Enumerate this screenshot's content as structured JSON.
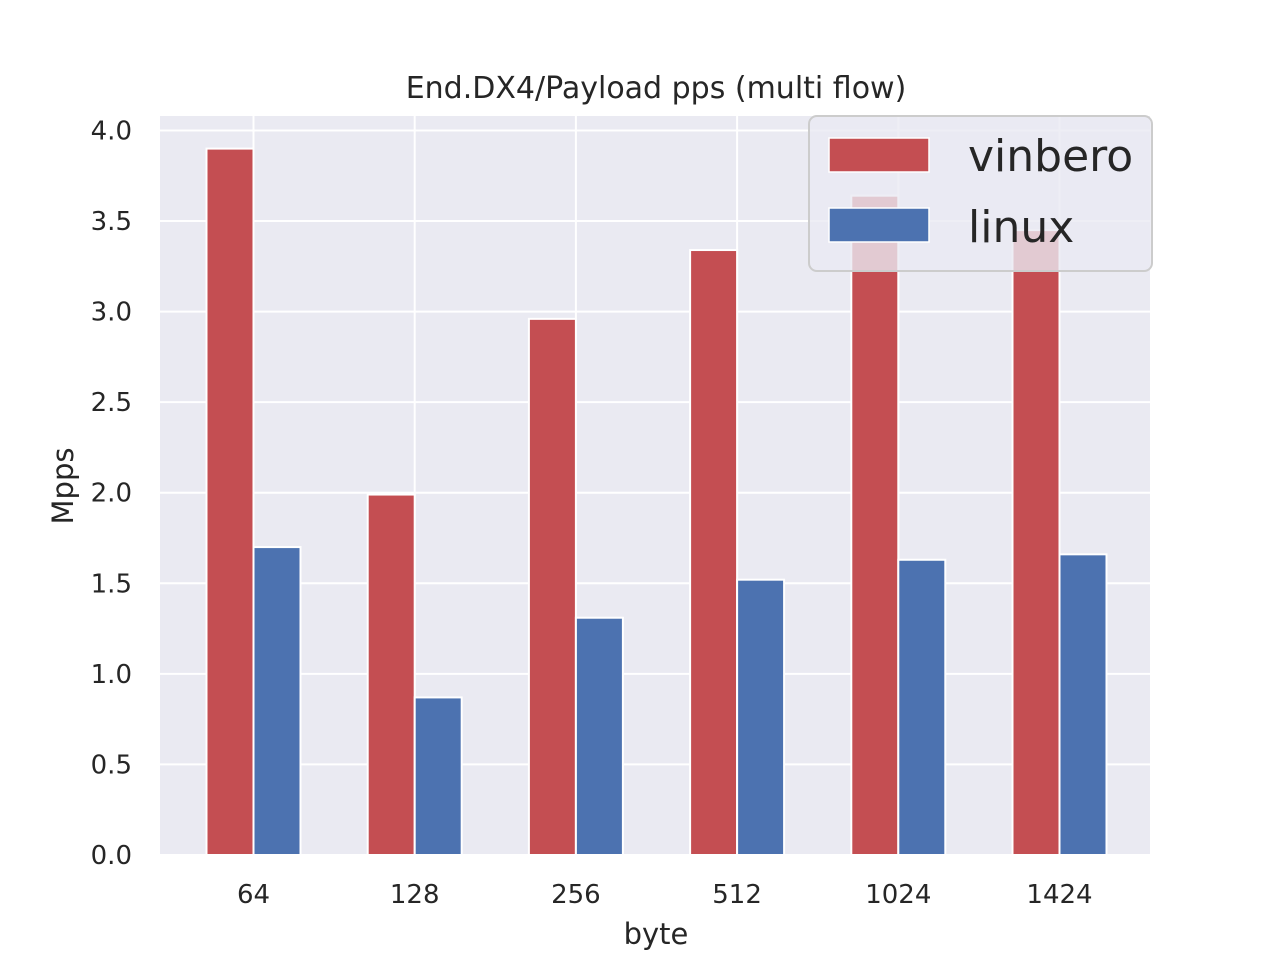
{
  "chart_data": {
    "type": "bar",
    "title": "End.DX4/Payload pps (multi flow)",
    "xlabel": "byte",
    "ylabel": "Mpps",
    "categories": [
      "64",
      "128",
      "256",
      "512",
      "1024",
      "1424"
    ],
    "series": [
      {
        "name": "vinbero",
        "color": "#c44e52",
        "values": [
          3.9,
          1.99,
          2.96,
          3.34,
          3.64,
          3.45
        ]
      },
      {
        "name": "linux",
        "color": "#4c72b0",
        "values": [
          1.7,
          0.87,
          1.31,
          1.52,
          1.63,
          1.66
        ]
      }
    ],
    "ylim": [
      0,
      4.08
    ],
    "yticks": [
      "0.0",
      "0.5",
      "1.0",
      "1.5",
      "2.0",
      "2.5",
      "3.0",
      "3.5",
      "4.0"
    ],
    "grid": true,
    "legend_position": "top-right",
    "background_color": "#eaeaf2"
  }
}
